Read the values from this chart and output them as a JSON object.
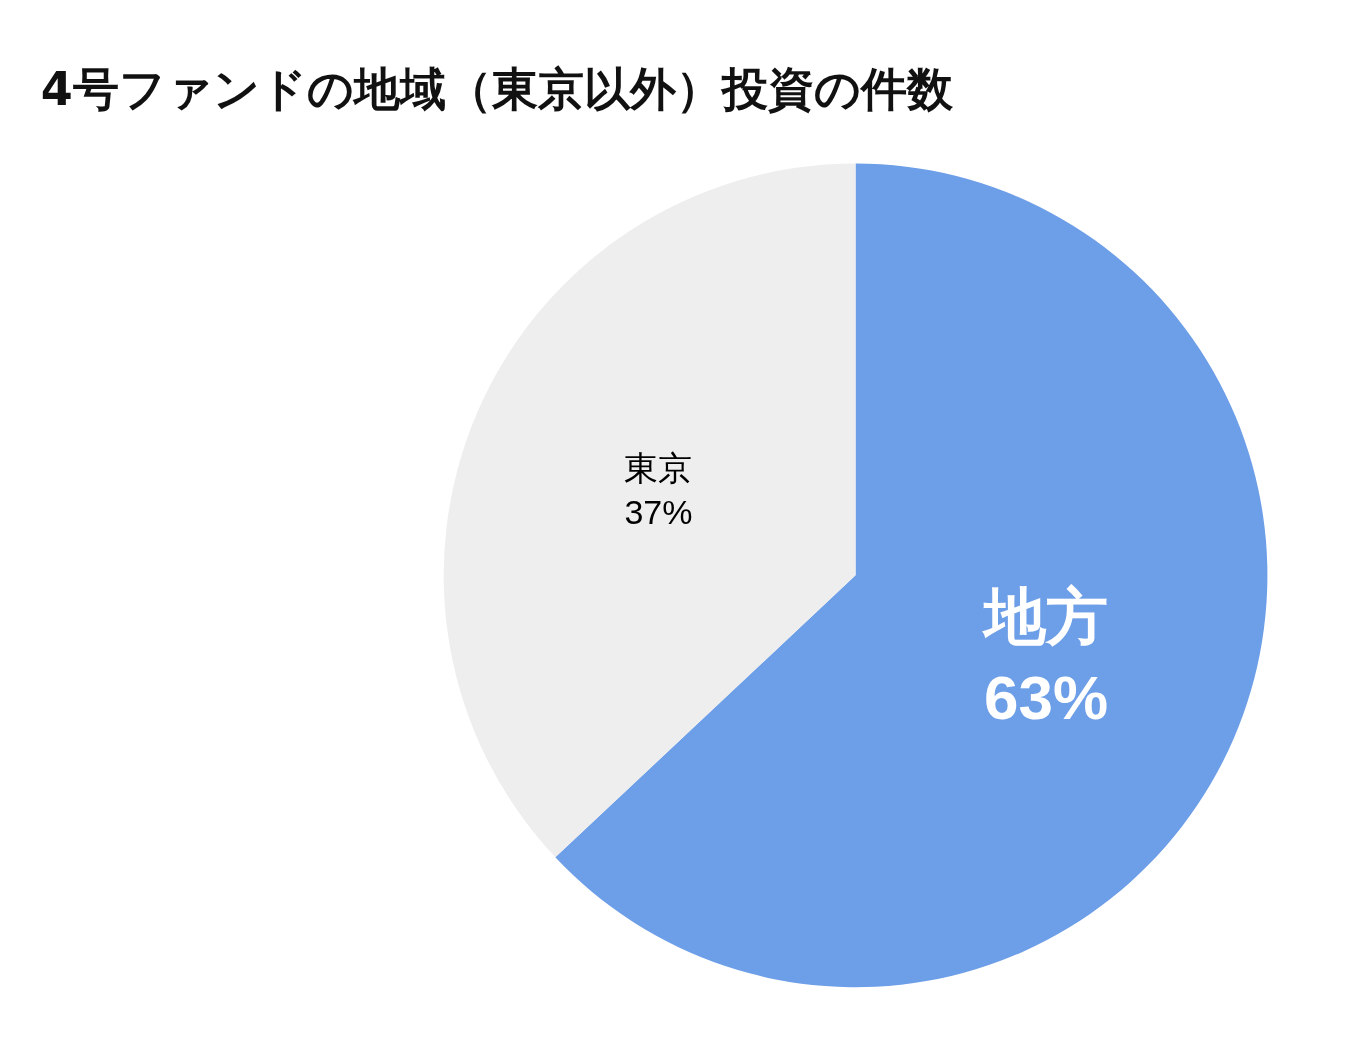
{
  "chart_data": {
    "type": "pie",
    "title": "4号ファンドの地域（東京以外）投資の件数",
    "categories": [
      "地方",
      "東京"
    ],
    "values": [
      63,
      37
    ],
    "value_labels": [
      "63%",
      "37%"
    ],
    "colors": [
      "#6d9ee8",
      "#eeeeee"
    ],
    "legend": false
  }
}
